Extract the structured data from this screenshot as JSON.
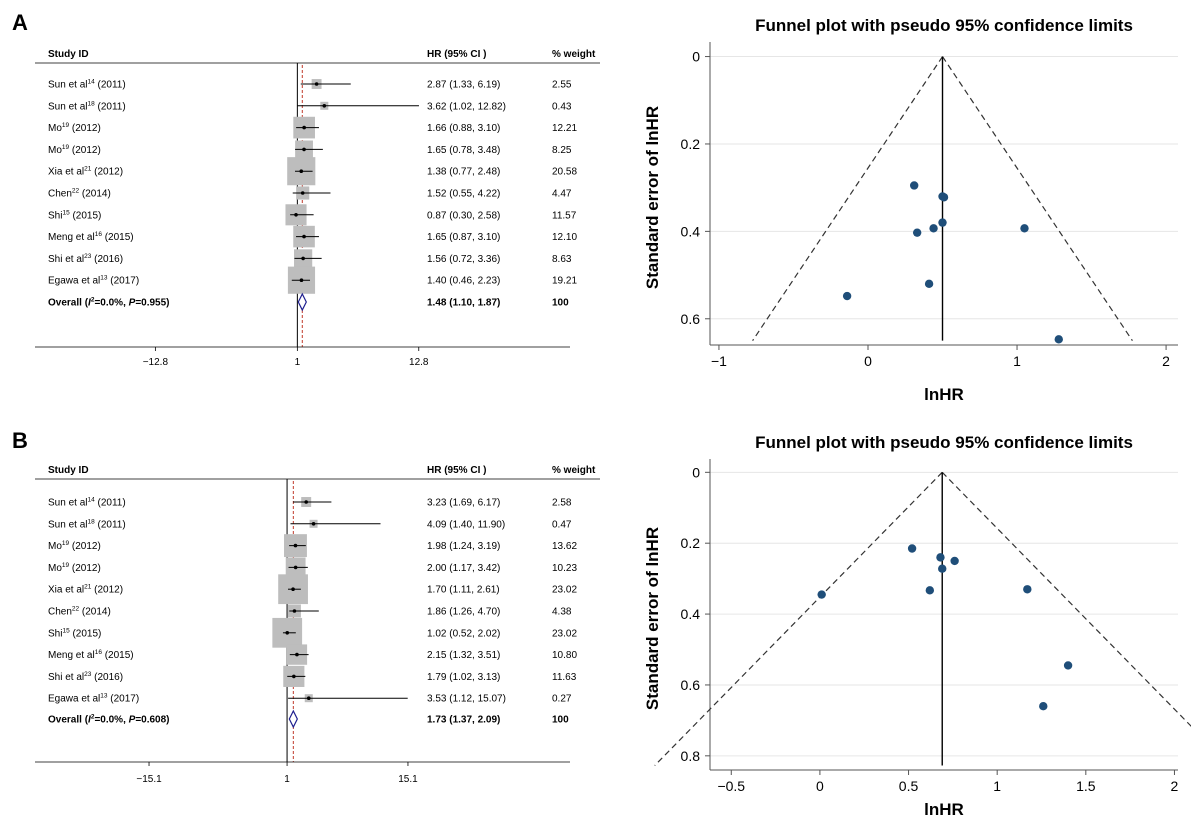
{
  "panels": [
    {
      "letter": "A",
      "forest": {
        "header": {
          "study": "Study ID",
          "hr": "HR (95% CI )",
          "weight": "% weight"
        },
        "studies": [
          {
            "name": "Sun et al",
            "sup": "14",
            "year": " (2011)",
            "hr_text": "2.87 (1.33, 6.19)",
            "weight_text": "2.55"
          },
          {
            "name": "Sun et al",
            "sup": "18",
            "year": " (2011)",
            "hr_text": "3.62 (1.02, 12.82)",
            "weight_text": "0.43"
          },
          {
            "name": "Mo",
            "sup": "19",
            "year": " (2012)",
            "hr_text": "1.66 (0.88, 3.10)",
            "weight_text": "12.21"
          },
          {
            "name": "Mo",
            "sup": "19",
            "year": " (2012)",
            "hr_text": "1.65 (0.78, 3.48)",
            "weight_text": "8.25"
          },
          {
            "name": "Xia et al",
            "sup": "21",
            "year": " (2012)",
            "hr_text": "1.38 (0.77, 2.48)",
            "weight_text": "20.58"
          },
          {
            "name": "Chen",
            "sup": "22",
            "year": " (2014)",
            "hr_text": "1.52 (0.55, 4.22)",
            "weight_text": "4.47"
          },
          {
            "name": "Shi",
            "sup": "15",
            "year": " (2015)",
            "hr_text": "0.87 (0.30, 2.58)",
            "weight_text": "11.57"
          },
          {
            "name": "Meng et al",
            "sup": "16",
            "year": " (2015)",
            "hr_text": "1.65 (0.87, 3.10)",
            "weight_text": "12.10"
          },
          {
            "name": "Shi et al",
            "sup": "23",
            "year": " (2016)",
            "hr_text": "1.56 (0.72, 3.36)",
            "weight_text": "8.63"
          },
          {
            "name": "Egawa et al",
            "sup": "13",
            "year": " (2017)",
            "hr_text": "1.40 (0.46, 2.23)",
            "weight_text": "19.21"
          }
        ],
        "overall": {
          "label_prefix": "Overall (",
          "i_letter": "I",
          "i_sup": "2",
          "i_rest": "=0.0%, ",
          "p_letter": "P",
          "p_rest": "=0.955)",
          "hr_text": "1.48 (1.10, 1.87)",
          "weight_text": "100"
        },
        "ticks": [
          "−12.8",
          "1",
          "12.8"
        ]
      },
      "funnel": {
        "title": "Funnel plot with pseudo 95% confidence limits",
        "xlabel": "lnHR",
        "ylabel": "Standard error of lnHR",
        "xticks": [
          "−1",
          "0",
          "1",
          "2"
        ],
        "yticks": [
          "0",
          "0.2",
          "0.4",
          "0.6"
        ]
      }
    },
    {
      "letter": "B",
      "forest": {
        "header": {
          "study": "Study ID",
          "hr": "HR (95% CI )",
          "weight": "% weight"
        },
        "studies": [
          {
            "name": "Sun et al",
            "sup": "14",
            "year": " (2011)",
            "hr_text": "3.23 (1.69, 6.17)",
            "weight_text": "2.58"
          },
          {
            "name": "Sun et al",
            "sup": "18",
            "year": " (2011)",
            "hr_text": "4.09 (1.40, 11.90)",
            "weight_text": "0.47"
          },
          {
            "name": "Mo",
            "sup": "19",
            "year": " (2012)",
            "hr_text": "1.98 (1.24, 3.19)",
            "weight_text": "13.62"
          },
          {
            "name": "Mo",
            "sup": "19",
            "year": " (2012)",
            "hr_text": "2.00 (1.17, 3.42)",
            "weight_text": "10.23"
          },
          {
            "name": "Xia et al",
            "sup": "21",
            "year": " (2012)",
            "hr_text": "1.70 (1.11, 2.61)",
            "weight_text": "23.02"
          },
          {
            "name": "Chen",
            "sup": "22",
            "year": " (2014)",
            "hr_text": "1.86 (1.26, 4.70)",
            "weight_text": "4.38"
          },
          {
            "name": "Shi",
            "sup": "15",
            "year": " (2015)",
            "hr_text": "1.02 (0.52, 2.02)",
            "weight_text": "23.02"
          },
          {
            "name": "Meng et al",
            "sup": "16",
            "year": " (2015)",
            "hr_text": "2.15 (1.32, 3.51)",
            "weight_text": "10.80"
          },
          {
            "name": "Shi et al",
            "sup": "23",
            "year": " (2016)",
            "hr_text": "1.79 (1.02, 3.13)",
            "weight_text": "11.63"
          },
          {
            "name": "Egawa et al",
            "sup": "13",
            "year": " (2017)",
            "hr_text": "3.53 (1.12, 15.07)",
            "weight_text": "0.27"
          }
        ],
        "overall": {
          "label_prefix": "Overall (",
          "i_letter": "I",
          "i_sup": "2",
          "i_rest": "=0.0%, ",
          "p_letter": "P",
          "p_rest": "=0.608)",
          "hr_text": "1.73 (1.37, 2.09)",
          "weight_text": "100"
        },
        "ticks": [
          "−15.1",
          "1",
          "15.1"
        ]
      },
      "funnel": {
        "title": "Funnel plot with pseudo 95% confidence limits",
        "xlabel": "lnHR",
        "ylabel": "Standard error of lnHR",
        "xticks": [
          "−0.5",
          "0",
          "0.5",
          "1",
          "1.5",
          "2"
        ],
        "yticks": [
          "0",
          "0.2",
          "0.4",
          "0.6",
          "0.8"
        ]
      }
    }
  ],
  "chart_data": [
    {
      "type": "forest",
      "panel": "A",
      "xlim": [
        -12.8,
        12.8
      ],
      "null_value": 1,
      "studies": [
        {
          "hr": 2.87,
          "ci": [
            1.33,
            6.19
          ],
          "weight": 2.55
        },
        {
          "hr": 3.62,
          "ci": [
            1.02,
            12.82
          ],
          "weight": 0.43
        },
        {
          "hr": 1.66,
          "ci": [
            0.88,
            3.1
          ],
          "weight": 12.21
        },
        {
          "hr": 1.65,
          "ci": [
            0.78,
            3.48
          ],
          "weight": 8.25
        },
        {
          "hr": 1.38,
          "ci": [
            0.77,
            2.48
          ],
          "weight": 20.58
        },
        {
          "hr": 1.52,
          "ci": [
            0.55,
            4.22
          ],
          "weight": 4.47
        },
        {
          "hr": 0.87,
          "ci": [
            0.3,
            2.58
          ],
          "weight": 11.57
        },
        {
          "hr": 1.65,
          "ci": [
            0.87,
            3.1
          ],
          "weight": 12.1
        },
        {
          "hr": 1.56,
          "ci": [
            0.72,
            3.36
          ],
          "weight": 8.63
        },
        {
          "hr": 1.4,
          "ci": [
            0.46,
            2.23
          ],
          "weight": 19.21
        }
      ],
      "overall": {
        "hr": 1.48,
        "ci": [
          1.1,
          1.87
        ],
        "weight": 100
      }
    },
    {
      "type": "scatter",
      "panel": "A",
      "title": "Funnel plot with pseudo 95% confidence limits",
      "xlabel": "lnHR",
      "ylabel": "Standard error of lnHR",
      "xlim": [
        -1.05,
        2.1
      ],
      "ylim": [
        0,
        0.66
      ],
      "y_inverted": true,
      "pooled_lnhr": 0.5,
      "points": [
        {
          "x": 0.31,
          "y": 0.295
        },
        {
          "x": 0.5,
          "y": 0.32
        },
        {
          "x": 0.51,
          "y": 0.322
        },
        {
          "x": 0.33,
          "y": 0.403
        },
        {
          "x": 0.44,
          "y": 0.393
        },
        {
          "x": 0.5,
          "y": 0.38
        },
        {
          "x": 1.05,
          "y": 0.393
        },
        {
          "x": 0.41,
          "y": 0.52
        },
        {
          "x": -0.14,
          "y": 0.548
        },
        {
          "x": 1.28,
          "y": 0.647
        }
      ],
      "grid": true
    },
    {
      "type": "forest",
      "panel": "B",
      "xlim": [
        -15.1,
        15.1
      ],
      "null_value": 1,
      "studies": [
        {
          "hr": 3.23,
          "ci": [
            1.69,
            6.17
          ],
          "weight": 2.58
        },
        {
          "hr": 4.09,
          "ci": [
            1.4,
            11.9
          ],
          "weight": 0.47
        },
        {
          "hr": 1.98,
          "ci": [
            1.24,
            3.19
          ],
          "weight": 13.62
        },
        {
          "hr": 2.0,
          "ci": [
            1.17,
            3.42
          ],
          "weight": 10.23
        },
        {
          "hr": 1.7,
          "ci": [
            1.11,
            2.61
          ],
          "weight": 23.02
        },
        {
          "hr": 1.86,
          "ci": [
            1.26,
            4.7
          ],
          "weight": 4.38
        },
        {
          "hr": 1.02,
          "ci": [
            0.52,
            2.02
          ],
          "weight": 23.02
        },
        {
          "hr": 2.15,
          "ci": [
            1.32,
            3.51
          ],
          "weight": 10.8
        },
        {
          "hr": 1.79,
          "ci": [
            1.02,
            3.13
          ],
          "weight": 11.63
        },
        {
          "hr": 3.53,
          "ci": [
            1.12,
            15.07
          ],
          "weight": 0.27
        }
      ],
      "overall": {
        "hr": 1.73,
        "ci": [
          1.37,
          2.09
        ],
        "weight": 100
      }
    },
    {
      "type": "scatter",
      "panel": "B",
      "title": "Funnel plot with pseudo 95% confidence limits",
      "xlabel": "lnHR",
      "ylabel": "Standard error of lnHR",
      "xlim": [
        -0.6,
        2.0
      ],
      "ylim": [
        0,
        0.84
      ],
      "y_inverted": true,
      "pooled_lnhr": 0.69,
      "points": [
        {
          "x": 0.52,
          "y": 0.215
        },
        {
          "x": 0.68,
          "y": 0.24
        },
        {
          "x": 0.76,
          "y": 0.25
        },
        {
          "x": 0.69,
          "y": 0.272
        },
        {
          "x": 0.62,
          "y": 0.333
        },
        {
          "x": 0.01,
          "y": 0.345
        },
        {
          "x": 1.17,
          "y": 0.33
        },
        {
          "x": 1.4,
          "y": 0.545
        },
        {
          "x": 1.26,
          "y": 0.66
        }
      ],
      "grid": true
    }
  ]
}
